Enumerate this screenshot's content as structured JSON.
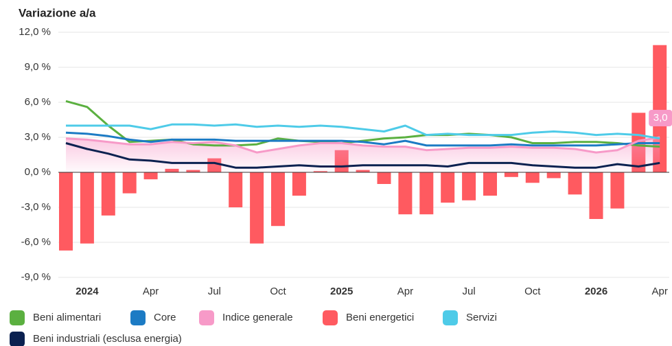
{
  "chart_data": {
    "type": "combo",
    "title": "Variazione a/a",
    "categories": [
      null,
      "2024",
      null,
      null,
      "Apr",
      null,
      null,
      "Jul",
      null,
      null,
      "Oct",
      null,
      null,
      "2025",
      null,
      null,
      "Apr",
      null,
      null,
      "Jul",
      null,
      null,
      "Oct",
      null,
      null,
      "2026",
      null,
      null,
      "Apr"
    ],
    "ylim": [
      -9,
      12
    ],
    "yticks": [
      {
        "value": 12,
        "label": "12,0 %"
      },
      {
        "value": 9,
        "label": "9,0 %"
      },
      {
        "value": 6,
        "label": "6,0 %"
      },
      {
        "value": 3,
        "label": "3,0 %"
      },
      {
        "value": 0,
        "label": "0,0 %"
      },
      {
        "value": -3,
        "label": "-3,0 %"
      },
      {
        "value": -6,
        "label": "-6,0 %"
      },
      {
        "value": -9,
        "label": "-9,0 %"
      }
    ],
    "grid": true,
    "series": [
      {
        "name": "Beni alimentari",
        "type": "line",
        "color": "#5bb040",
        "values": [
          6.1,
          5.6,
          4.0,
          2.6,
          2.7,
          2.8,
          2.4,
          2.3,
          2.3,
          2.4,
          2.9,
          2.7,
          2.6,
          2.5,
          2.7,
          2.9,
          3.0,
          3.2,
          3.2,
          3.3,
          3.2,
          3.0,
          2.5,
          2.5,
          2.6,
          2.6,
          2.5,
          2.3,
          2.2
        ]
      },
      {
        "name": "Core",
        "type": "line",
        "color": "#1c7bc4",
        "values": [
          3.4,
          3.3,
          3.1,
          2.8,
          2.6,
          2.8,
          2.8,
          2.8,
          2.7,
          2.7,
          2.7,
          2.7,
          2.7,
          2.7,
          2.6,
          2.4,
          2.7,
          2.3,
          2.3,
          2.3,
          2.3,
          2.4,
          2.3,
          2.3,
          2.3,
          2.3,
          2.4,
          2.5,
          2.5
        ]
      },
      {
        "name": "Indice generale",
        "type": "area",
        "color": "#f79ac8",
        "values": [
          2.9,
          2.8,
          2.6,
          2.4,
          2.4,
          2.6,
          2.5,
          2.6,
          2.3,
          1.7,
          2.0,
          2.3,
          2.5,
          2.5,
          2.3,
          2.2,
          2.2,
          1.9,
          2.0,
          2.1,
          2.1,
          2.2,
          2.1,
          2.1,
          2.0,
          1.7,
          1.9,
          2.7,
          3.0
        ],
        "value_labels": [
          null,
          null,
          null,
          null,
          null,
          null,
          null,
          null,
          null,
          null,
          null,
          null,
          null,
          null,
          null,
          null,
          null,
          null,
          null,
          null,
          null,
          null,
          null,
          null,
          null,
          null,
          null,
          null,
          "3,0"
        ]
      },
      {
        "name": "Beni energetici",
        "type": "bar",
        "color": "#ff5a60",
        "values": [
          -6.7,
          -6.1,
          -3.7,
          -1.8,
          -0.6,
          0.3,
          0.2,
          1.2,
          -3.0,
          -6.1,
          -4.6,
          -2.0,
          0.1,
          1.9,
          0.2,
          -1.0,
          -3.6,
          -3.6,
          -2.6,
          -2.4,
          -2.0,
          -0.4,
          -0.9,
          -0.5,
          -1.9,
          -4.0,
          -3.1,
          5.1,
          10.9
        ]
      },
      {
        "name": "Servizi",
        "type": "line",
        "color": "#4ecbe8",
        "values": [
          4.0,
          4.0,
          4.0,
          4.0,
          3.7,
          4.1,
          4.1,
          4.0,
          4.1,
          3.9,
          4.0,
          3.9,
          4.0,
          3.9,
          3.7,
          3.5,
          4.0,
          3.2,
          3.3,
          3.2,
          3.2,
          3.2,
          3.4,
          3.5,
          3.4,
          3.2,
          3.3,
          3.2,
          2.9
        ]
      },
      {
        "name": "Beni industriali (esclusa energia)",
        "type": "line",
        "color": "#0b2150",
        "values": [
          2.5,
          2.0,
          1.6,
          1.1,
          1.0,
          0.8,
          0.8,
          0.8,
          0.4,
          0.4,
          0.5,
          0.6,
          0.5,
          0.5,
          0.6,
          0.6,
          0.6,
          0.6,
          0.5,
          0.8,
          0.8,
          0.8,
          0.6,
          0.5,
          0.4,
          0.4,
          0.7,
          0.5,
          0.8
        ]
      }
    ]
  }
}
